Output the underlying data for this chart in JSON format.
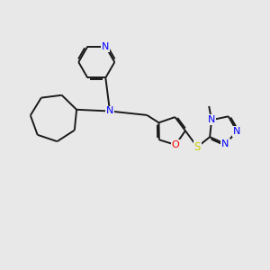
{
  "background_color": "#e8e8e8",
  "bond_color": "#1a1a1a",
  "N_color": "#0000ff",
  "O_color": "#ff0000",
  "S_color": "#cccc00",
  "figsize": [
    3.0,
    3.0
  ],
  "dpi": 100,
  "xlim": [
    0,
    10
  ],
  "ylim": [
    0,
    10
  ],
  "lw": 1.4,
  "fs": 8.0
}
